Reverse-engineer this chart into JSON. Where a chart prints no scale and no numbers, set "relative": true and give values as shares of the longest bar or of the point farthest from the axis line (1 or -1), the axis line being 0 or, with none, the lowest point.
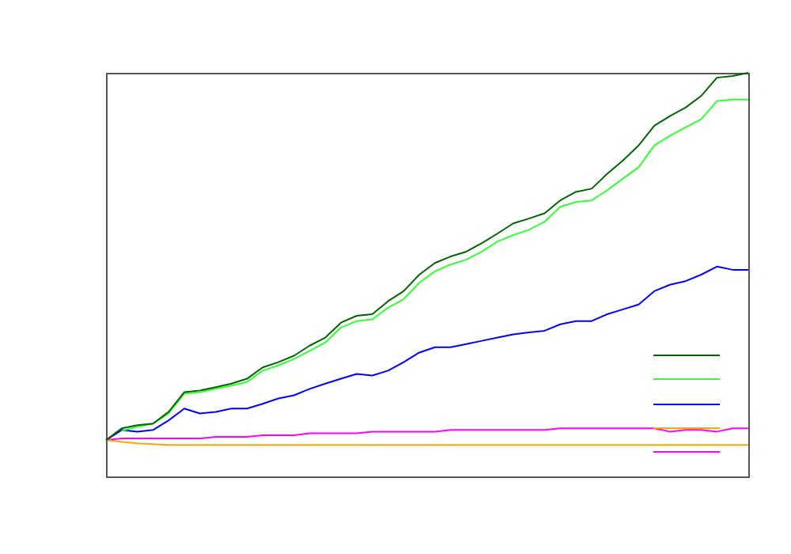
{
  "chart_data": {
    "type": "line",
    "relative": true,
    "categories": [
      null,
      null,
      null,
      null,
      null,
      null,
      null,
      null,
      null,
      null,
      null,
      null,
      null,
      null,
      null,
      null,
      null,
      null,
      null,
      null,
      null,
      null,
      null,
      null,
      null,
      null,
      null,
      null,
      null,
      null,
      null,
      null,
      null,
      null,
      null,
      null,
      null,
      null,
      null,
      null,
      null,
      null
    ],
    "series": [
      {
        "color": "#006400",
        "values": [
          0.09,
          0.119,
          0.127,
          0.131,
          0.16,
          0.209,
          0.213,
          0.221,
          0.23,
          0.242,
          0.27,
          0.283,
          0.299,
          0.324,
          0.344,
          0.381,
          0.398,
          0.402,
          0.434,
          0.459,
          0.5,
          0.529,
          0.545,
          0.557,
          0.578,
          0.602,
          0.627,
          0.639,
          0.652,
          0.684,
          0.705,
          0.713,
          0.75,
          0.783,
          0.82,
          0.869,
          0.893,
          0.914,
          0.943,
          0.988,
          0.992,
          1
        ]
      },
      {
        "color": "#33ff33",
        "values": [
          null,
          0.113,
          0.123,
          0.131,
          0.156,
          0.205,
          0.209,
          0.217,
          0.225,
          0.234,
          0.262,
          0.275,
          0.291,
          0.311,
          0.332,
          0.369,
          0.385,
          0.389,
          0.418,
          0.439,
          0.48,
          0.508,
          0.525,
          0.537,
          0.557,
          0.582,
          0.598,
          0.611,
          0.631,
          0.668,
          0.68,
          0.684,
          0.709,
          0.738,
          0.766,
          0.82,
          0.844,
          0.865,
          0.885,
          0.93,
          0.934,
          0.934
        ]
      },
      {
        "color": "#0000ff",
        "values": [
          0.09,
          0.115,
          0.111,
          0.115,
          0.139,
          0.168,
          0.156,
          0.16,
          0.168,
          0.168,
          0.18,
          0.193,
          0.201,
          0.217,
          0.23,
          0.242,
          0.254,
          0.25,
          0.262,
          0.283,
          0.307,
          0.32,
          0.32,
          0.328,
          0.336,
          0.344,
          0.352,
          0.357,
          0.361,
          0.377,
          0.385,
          0.385,
          0.402,
          0.414,
          0.426,
          0.459,
          0.475,
          0.484,
          0.5,
          0.52,
          0.512,
          0.512
        ]
      },
      {
        "color": "#ffa500",
        "values": [
          0.09,
          0.086,
          0.082,
          0.08,
          0.078,
          0.078,
          0.078,
          0.078,
          0.078,
          0.078,
          0.078,
          0.078,
          0.078,
          0.078,
          0.078,
          0.078,
          0.078,
          0.078,
          0.078,
          0.078,
          0.078,
          0.078,
          0.078,
          0.078,
          0.078,
          0.078,
          0.078,
          0.078,
          0.078,
          0.078,
          0.078,
          0.078,
          0.078,
          0.078,
          0.078,
          0.078,
          0.078,
          0.078,
          0.078,
          0.078,
          0.078,
          0.078
        ]
      },
      {
        "color": "#ff00ff",
        "values": [
          0.09,
          0.094,
          0.094,
          0.094,
          0.094,
          0.094,
          0.094,
          0.098,
          0.098,
          0.098,
          0.102,
          0.102,
          0.102,
          0.107,
          0.107,
          0.107,
          0.107,
          0.111,
          0.111,
          0.111,
          0.111,
          0.111,
          0.115,
          0.115,
          0.115,
          0.115,
          0.115,
          0.115,
          0.115,
          0.119,
          0.119,
          0.119,
          0.119,
          0.119,
          0.119,
          0.119,
          0.111,
          0.115,
          0.115,
          0.111,
          0.119,
          0.119
        ]
      }
    ]
  }
}
